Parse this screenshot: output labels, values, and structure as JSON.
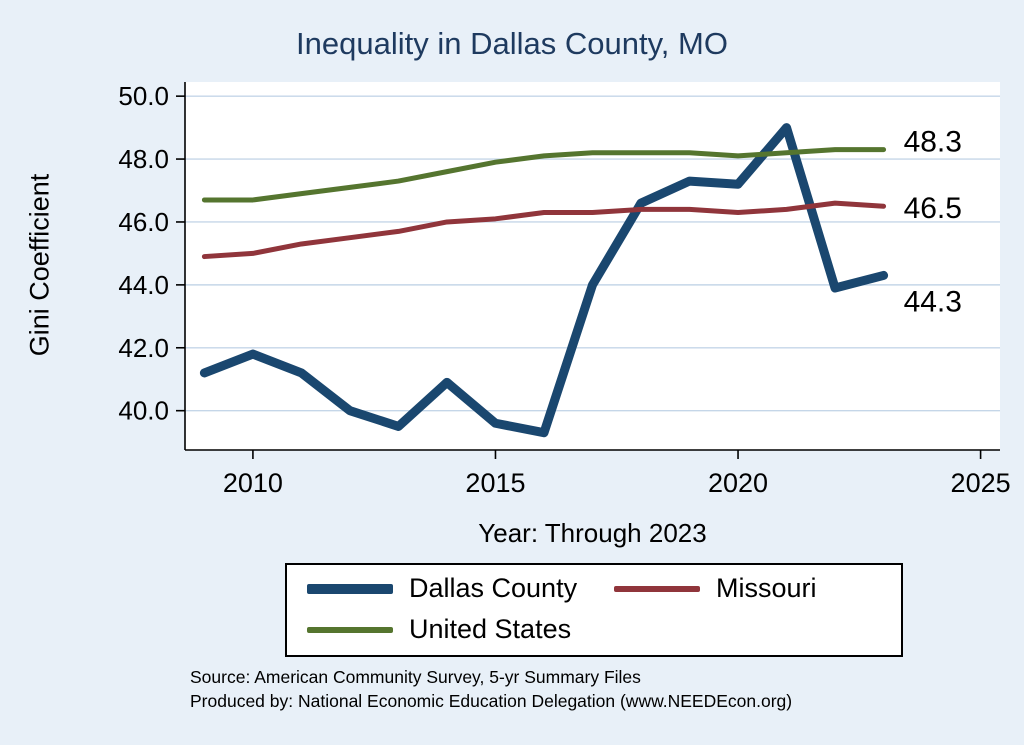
{
  "title": "Inequality in Dallas County, MO",
  "xlabel": "Year: Through 2023",
  "ylabel": "Gini Coefficient",
  "source_line1": "Source: American Community Survey, 5-yr Summary Files",
  "source_line2": "Produced by: National Economic Education Delegation (www.NEEDEcon.org)",
  "colors": {
    "page_bg": "#e8f0f8",
    "plot_bg": "#ffffff",
    "grid": "#c5d6e8",
    "axis": "#000000",
    "title": "#1e3a5f",
    "dallas": "#1a476f",
    "missouri": "#90353b",
    "united_states": "#55752f"
  },
  "chart_data": {
    "type": "line",
    "title": "Inequality in Dallas County, MO",
    "xlabel": "Year: Through 2023",
    "ylabel": "Gini Coefficient",
    "x": [
      2009,
      2010,
      2011,
      2012,
      2013,
      2014,
      2015,
      2016,
      2017,
      2018,
      2019,
      2020,
      2021,
      2022,
      2023
    ],
    "series": [
      {
        "name": "Dallas County",
        "color": "#1a476f",
        "width": 9,
        "values": [
          41.2,
          41.8,
          41.2,
          40.0,
          39.5,
          40.9,
          39.6,
          39.3,
          44.0,
          46.6,
          47.3,
          47.2,
          49.0,
          43.9,
          44.3
        ]
      },
      {
        "name": "Missouri",
        "color": "#90353b",
        "width": 5,
        "values": [
          44.9,
          45.0,
          45.3,
          45.5,
          45.7,
          46.0,
          46.1,
          46.3,
          46.3,
          46.4,
          46.4,
          46.3,
          46.4,
          46.6,
          46.5
        ]
      },
      {
        "name": "United States",
        "color": "#55752f",
        "width": 5,
        "values": [
          46.7,
          46.7,
          46.9,
          47.1,
          47.3,
          47.6,
          47.9,
          48.1,
          48.2,
          48.2,
          48.2,
          48.1,
          48.2,
          48.3,
          48.3
        ]
      }
    ],
    "end_labels": [
      {
        "text": "48.3",
        "value": 48.3,
        "dy": -8
      },
      {
        "text": "46.5",
        "value": 46.5,
        "dy": 2
      },
      {
        "text": "44.3",
        "value": 44.3,
        "dy": 26
      }
    ],
    "yticks": [
      40,
      42,
      44,
      46,
      48,
      50
    ],
    "ytick_labels": [
      "40.0",
      "42.0",
      "44.0",
      "46.0",
      "48.0",
      "50.0"
    ],
    "xticks": [
      2010,
      2015,
      2020,
      2025
    ],
    "xlim": [
      2008.6,
      2025.4
    ],
    "ylim": [
      38.75,
      50.45
    ],
    "grid": true,
    "legend_position": "bottom",
    "legend": [
      {
        "label": "Dallas County",
        "color": "#1a476f",
        "thickness": 10
      },
      {
        "label": "Missouri",
        "color": "#90353b",
        "thickness": 6
      },
      {
        "label": "United States",
        "color": "#55752f",
        "thickness": 6
      }
    ]
  }
}
